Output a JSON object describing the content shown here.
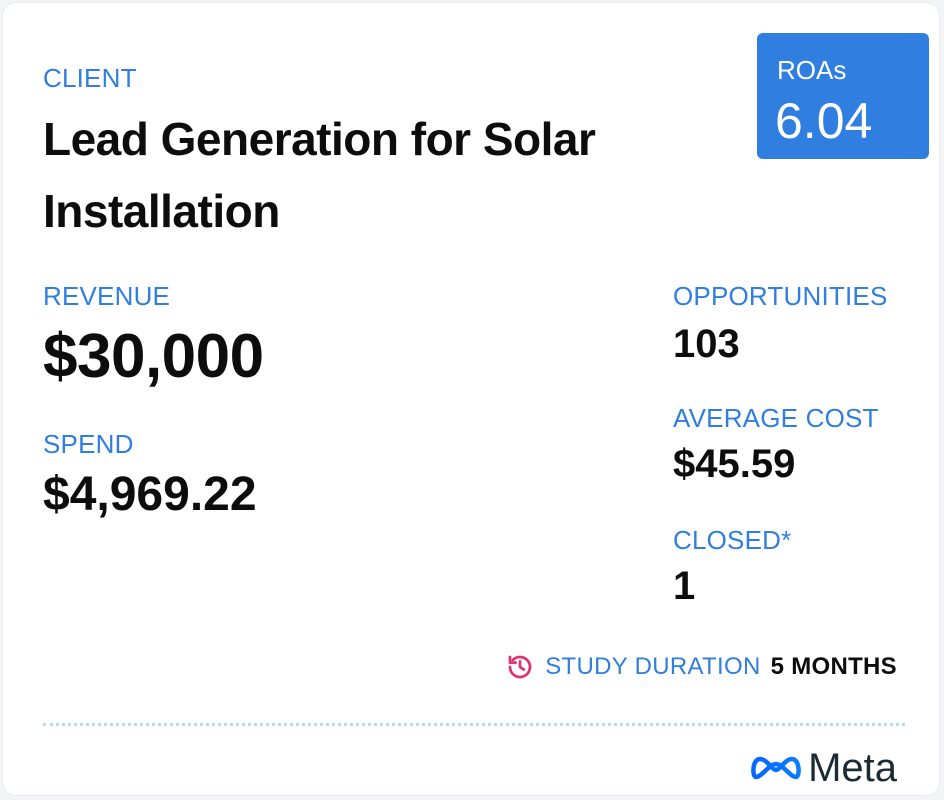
{
  "client": {
    "label": "CLIENT",
    "title": "Lead Generation for Solar Installation"
  },
  "roas": {
    "label": "ROAs",
    "value": "6.04"
  },
  "metrics": {
    "revenue_label": "REVENUE",
    "revenue_value": "$30,000",
    "spend_label": "SPEND",
    "spend_value": "$4,969.22",
    "opportunities_label": "OPPORTUNITIES",
    "opportunities_value": "103",
    "average_cost_label": "AVERAGE COST",
    "average_cost_value": "$45.59",
    "closed_label": "CLOSED*",
    "closed_value": "1"
  },
  "study": {
    "icon": "history-clock-icon",
    "label": "STUDY DURATION",
    "value": "5 MONTHS"
  },
  "footer": {
    "logo_icon": "meta-infinity-icon",
    "logo_text": "Meta"
  },
  "colors": {
    "accent_blue": "#2f7ee0",
    "icon_pink": "#e0336b",
    "text_dark": "#0d0d0d",
    "divider": "#bcd6f5"
  }
}
